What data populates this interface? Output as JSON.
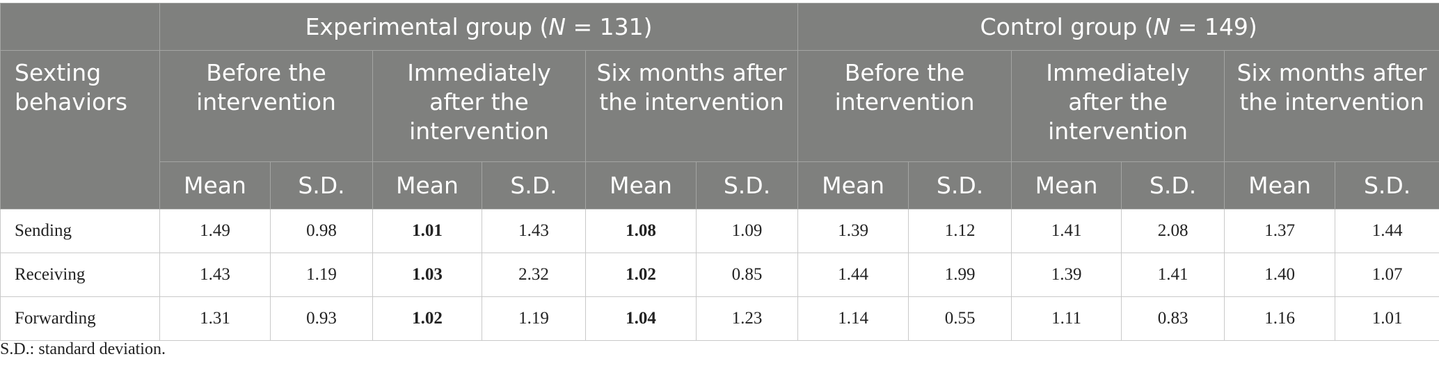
{
  "groups": {
    "experimental": {
      "label_pre": "Experimental group (",
      "n_symbol": "N",
      "label_post": " = 131)"
    },
    "control": {
      "label_pre": "Control group (",
      "n_symbol": "N",
      "label_post": " = 149)"
    }
  },
  "row_header": "Sexting behaviors",
  "timepoints": [
    "Before the intervention",
    "Immediately after the intervention",
    "Six months after the intervention"
  ],
  "stat_labels": {
    "mean": "Mean",
    "sd": "S.D."
  },
  "rows": [
    {
      "label": "Sending",
      "values": [
        "1.49",
        "0.98",
        "1.01",
        "1.43",
        "1.08",
        "1.09",
        "1.39",
        "1.12",
        "1.41",
        "2.08",
        "1.37",
        "1.44"
      ]
    },
    {
      "label": "Receiving",
      "values": [
        "1.43",
        "1.19",
        "1.03",
        "2.32",
        "1.02",
        "0.85",
        "1.44",
        "1.99",
        "1.39",
        "1.41",
        "1.40",
        "1.07"
      ]
    },
    {
      "label": "Forwarding",
      "values": [
        "1.31",
        "0.93",
        "1.02",
        "1.19",
        "1.04",
        "1.23",
        "1.14",
        "0.55",
        "1.11",
        "0.83",
        "1.16",
        "1.01"
      ]
    }
  ],
  "footnote": "S.D.: standard deviation."
}
